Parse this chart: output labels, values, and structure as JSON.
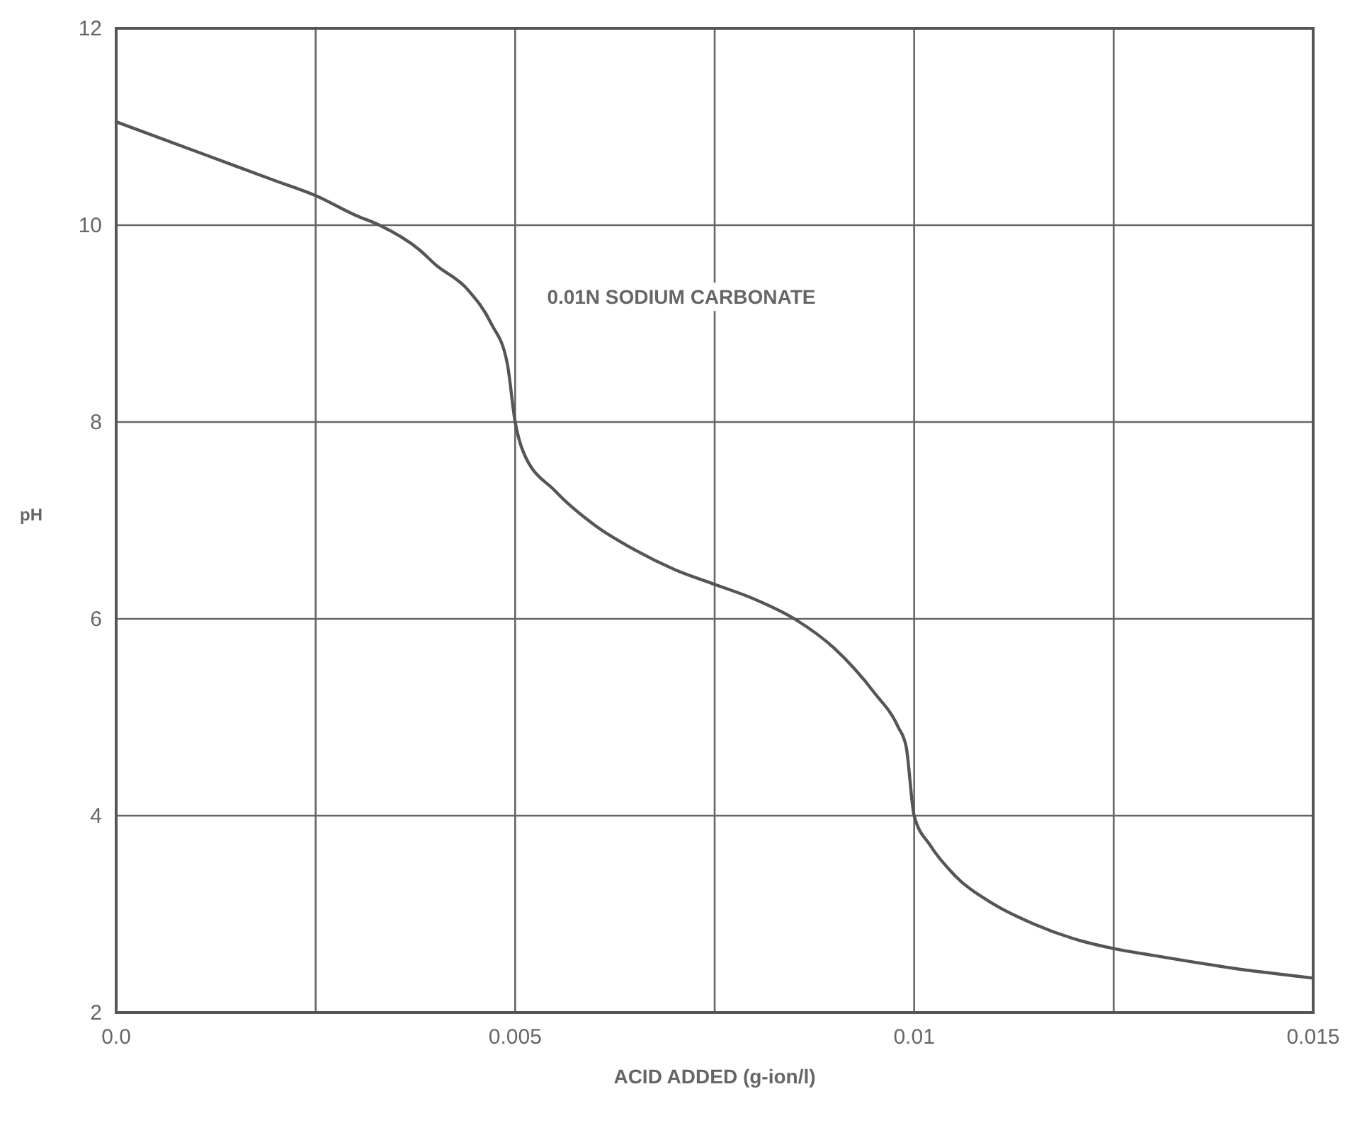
{
  "chart_data": {
    "type": "line",
    "xlabel": "ACID ADDED (g-ion/l)",
    "ylabel": "pH",
    "annotations": [
      "0.01N SODIUM CARBONATE"
    ],
    "x": [
      0,
      0.001,
      0.002,
      0.0025,
      0.003,
      0.0033,
      0.0038,
      0.004,
      0.0044,
      0.0047,
      0.0049,
      0.005,
      0.0051,
      0.0055,
      0.006,
      0.0065,
      0.007,
      0.0075,
      0.008,
      0.0085,
      0.009,
      0.0095,
      0.0098,
      0.0099,
      0.01,
      0.0102,
      0.0105,
      0.011,
      0.0115,
      0.012,
      0.0125,
      0.013,
      0.014,
      0.015
    ],
    "series": [
      {
        "color": "#555555",
        "values": [
          11.05,
          10.75,
          10.45,
          10.3,
          10.1,
          10.0,
          9.75,
          9.6,
          9.35,
          9.0,
          8.6,
          8.0,
          7.7,
          7.3,
          6.95,
          6.7,
          6.5,
          6.35,
          6.2,
          6.0,
          5.7,
          5.25,
          4.9,
          4.7,
          4.0,
          3.7,
          3.4,
          3.1,
          2.9,
          2.75,
          2.65,
          2.58,
          2.45,
          2.35
        ]
      }
    ],
    "xlim": [
      0,
      0.015
    ],
    "ylim": [
      2,
      12
    ],
    "xticks": [
      {
        "value": 0,
        "label": "0.0"
      },
      {
        "value": 0.0025,
        "label": null
      },
      0.005,
      {
        "value": 0.0075,
        "label": null
      },
      0.01,
      {
        "value": 0.0125,
        "label": null
      },
      0.015
    ],
    "yticks": [
      2,
      4,
      6,
      8,
      10,
      12
    ],
    "grid": true,
    "marker": "none",
    "line_style": "solid"
  }
}
